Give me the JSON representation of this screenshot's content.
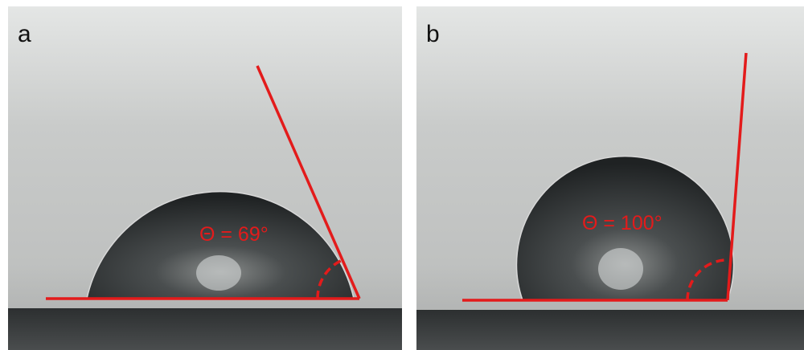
{
  "panels": [
    {
      "label": "a",
      "annotation": "Θ = 69°"
    },
    {
      "label": "b",
      "annotation": "Θ = 100°"
    }
  ]
}
